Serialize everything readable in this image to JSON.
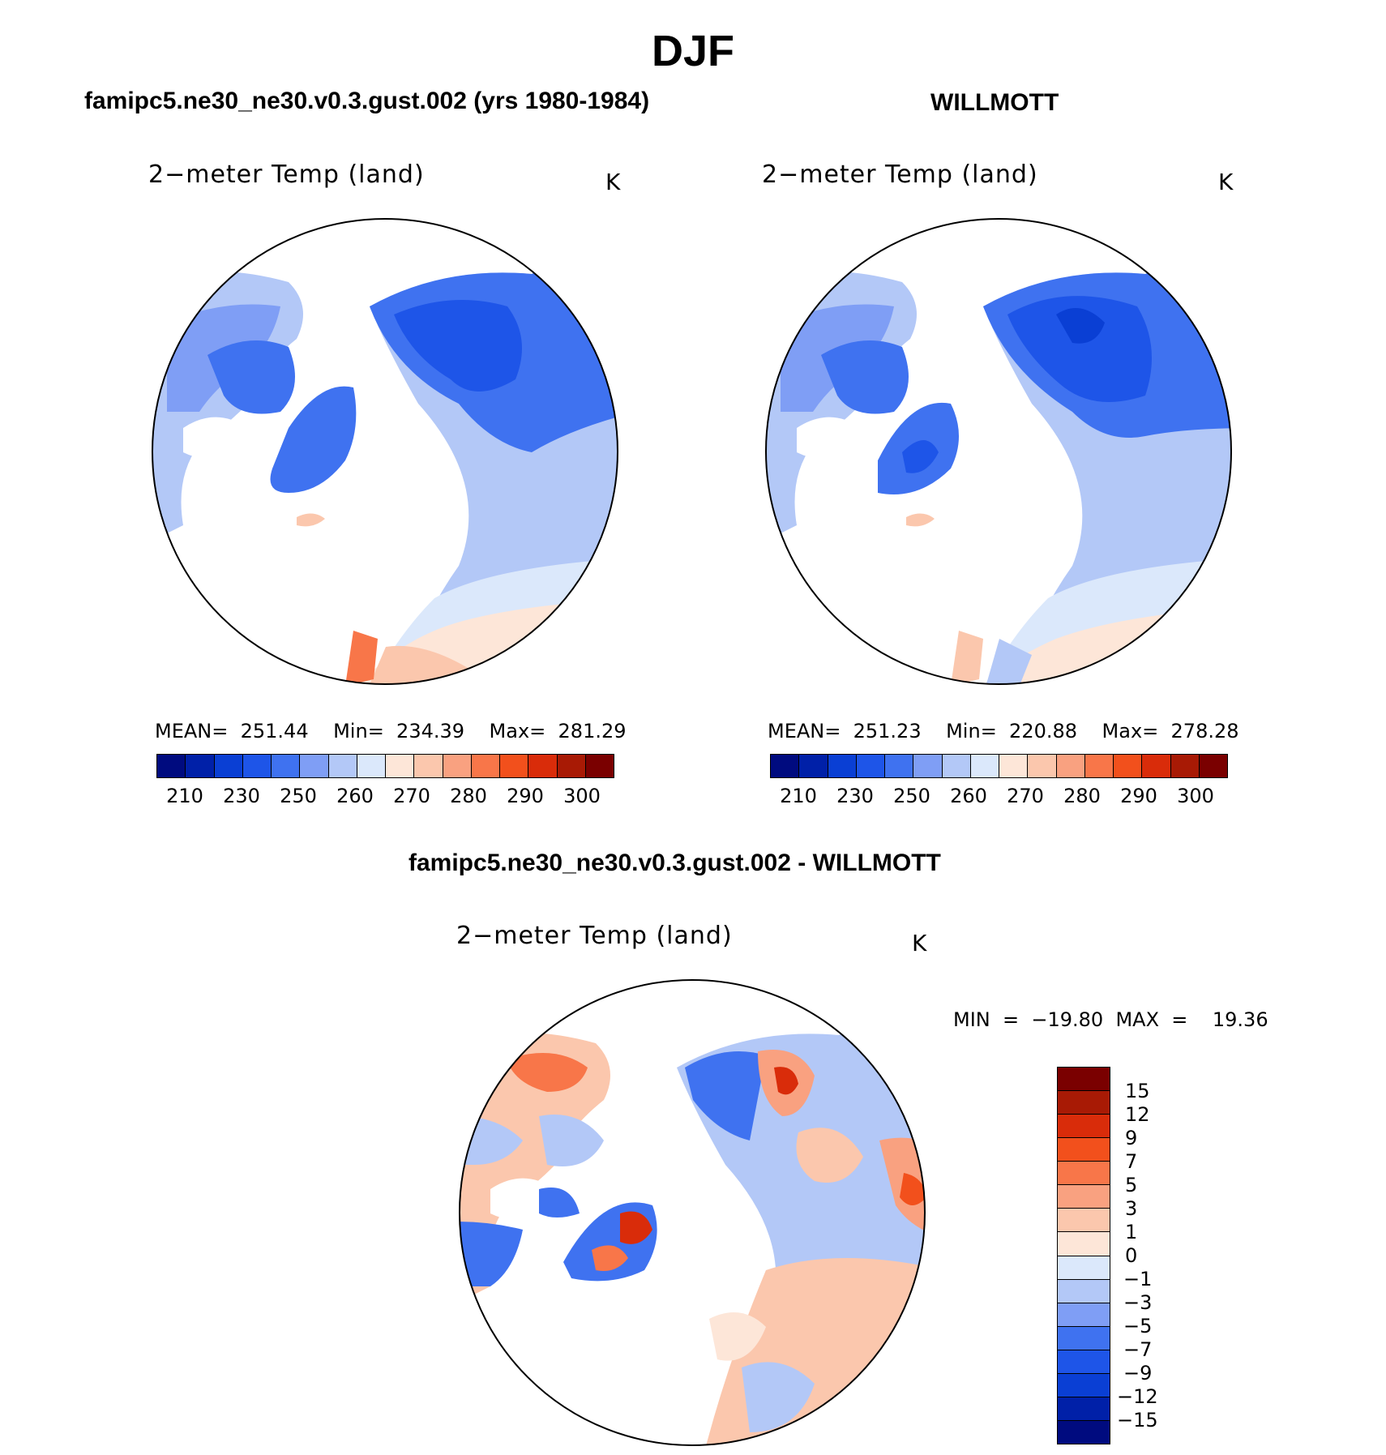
{
  "title": "DJF",
  "panels": [
    {
      "case_title": "famipc5.ne30_ne30.v0.3.gust.002 (yrs 1980-1984)",
      "variable": "2−meter Temp (land)",
      "unit": "K",
      "stats": "MEAN=  251.44    Min=  234.39    Max=  281.29",
      "colorbar_labels": [
        "210",
        "230",
        "250",
        "260",
        "270",
        "280",
        "290",
        "300"
      ]
    },
    {
      "case_title": "WILLMOTT",
      "variable": "2−meter Temp (land)",
      "unit": "K",
      "stats": "MEAN=  251.23    Min=  220.88    Max=  278.28",
      "colorbar_labels": [
        "210",
        "230",
        "250",
        "260",
        "270",
        "280",
        "290",
        "300"
      ]
    }
  ],
  "diff": {
    "case_title": "famipc5.ne30_ne30.v0.3.gust.002 - WILLMOTT",
    "variable": "2−meter Temp (land)",
    "unit": "K",
    "stats": "MIN  =  −19.80  MAX  =    19.36",
    "colorbar_labels": [
      "15",
      "12",
      "9",
      "7",
      "5",
      "3",
      "1",
      "0",
      "−1",
      "−3",
      "−5",
      "−7",
      "−9",
      "−12",
      "−15"
    ]
  },
  "colors": {
    "temp_scale": [
      "#000b7f",
      "#0020a8",
      "#0a3fd4",
      "#1e55e8",
      "#3f72f0",
      "#7f9ef5",
      "#b3c8f7",
      "#dbe8fb",
      "#fde6d8",
      "#fbc7ad",
      "#f9a180",
      "#f87649",
      "#f2501c",
      "#d92c0a",
      "#a81a05",
      "#7a0000"
    ],
    "diff_scale": [
      "#7a0000",
      "#a81a05",
      "#d92c0a",
      "#f2501c",
      "#f87649",
      "#f9a180",
      "#fbc7ad",
      "#fde6d8",
      "#dbe8fb",
      "#b3c8f7",
      "#7f9ef5",
      "#3f72f0",
      "#1e55e8",
      "#0a3fd4",
      "#0020a8",
      "#000b7f"
    ]
  }
}
